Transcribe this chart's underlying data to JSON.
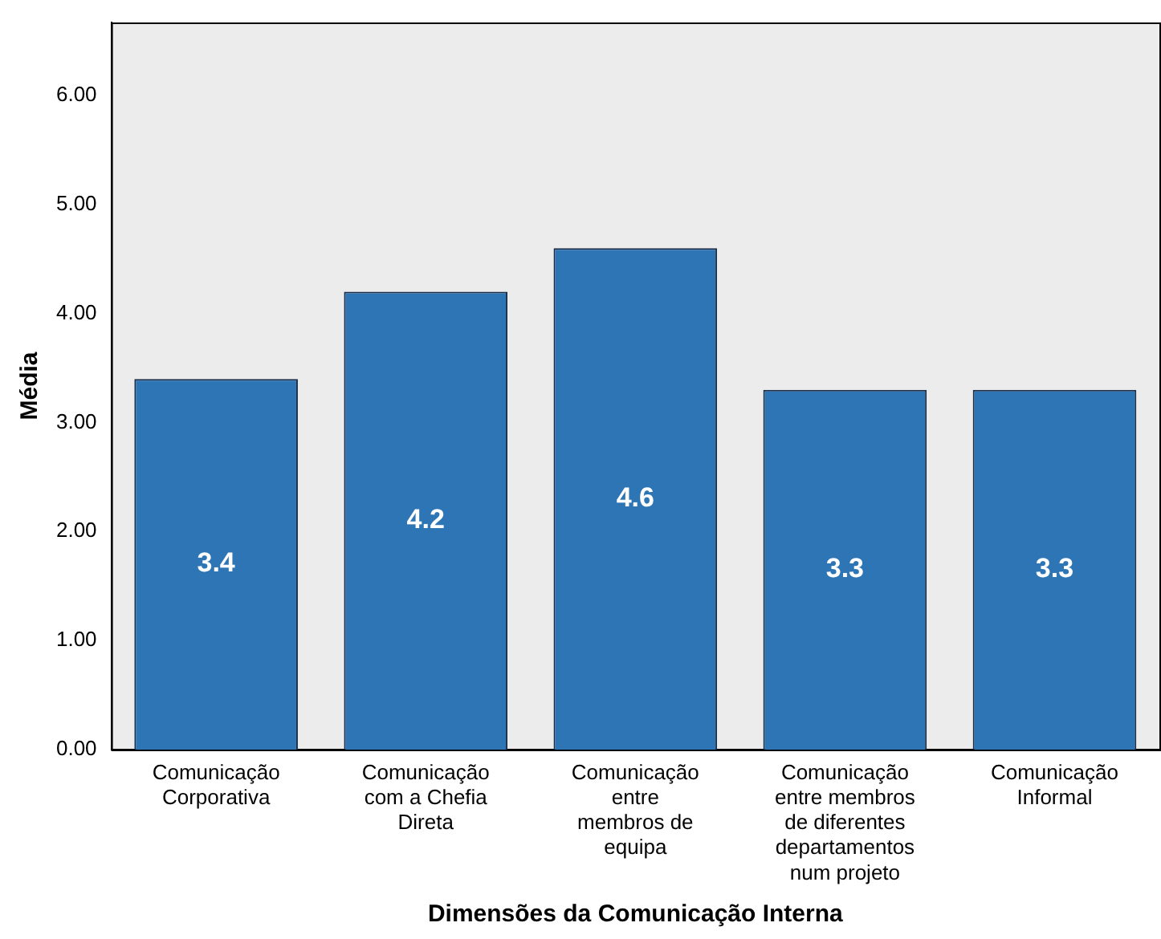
{
  "chart_data": {
    "type": "bar",
    "xlabel": "Dimensões da Comunicação Interna",
    "ylabel": "Média",
    "categories": [
      "Comunicação Corporativa",
      "Comunicação com a Chefia Direta",
      "Comunicação entre membros de equipa",
      "Comunicação entre membros de diferentes departamentos num projeto",
      "Comunicação Informal"
    ],
    "values": [
      3.4,
      4.2,
      4.6,
      3.3,
      3.3
    ],
    "color": "#2e75b6",
    "data_labels": true,
    "ylim": [
      0,
      6.67
    ],
    "yticks": [
      {
        "value": 0,
        "label": "0.00"
      },
      {
        "value": 1,
        "label": "1.00"
      },
      {
        "value": 2,
        "label": "2.00"
      },
      {
        "value": 3,
        "label": "3.00"
      },
      {
        "value": 4,
        "label": "4.00"
      },
      {
        "value": 5,
        "label": "5.00"
      },
      {
        "value": 6,
        "label": "6.00"
      }
    ],
    "grid": false,
    "legend": false
  }
}
